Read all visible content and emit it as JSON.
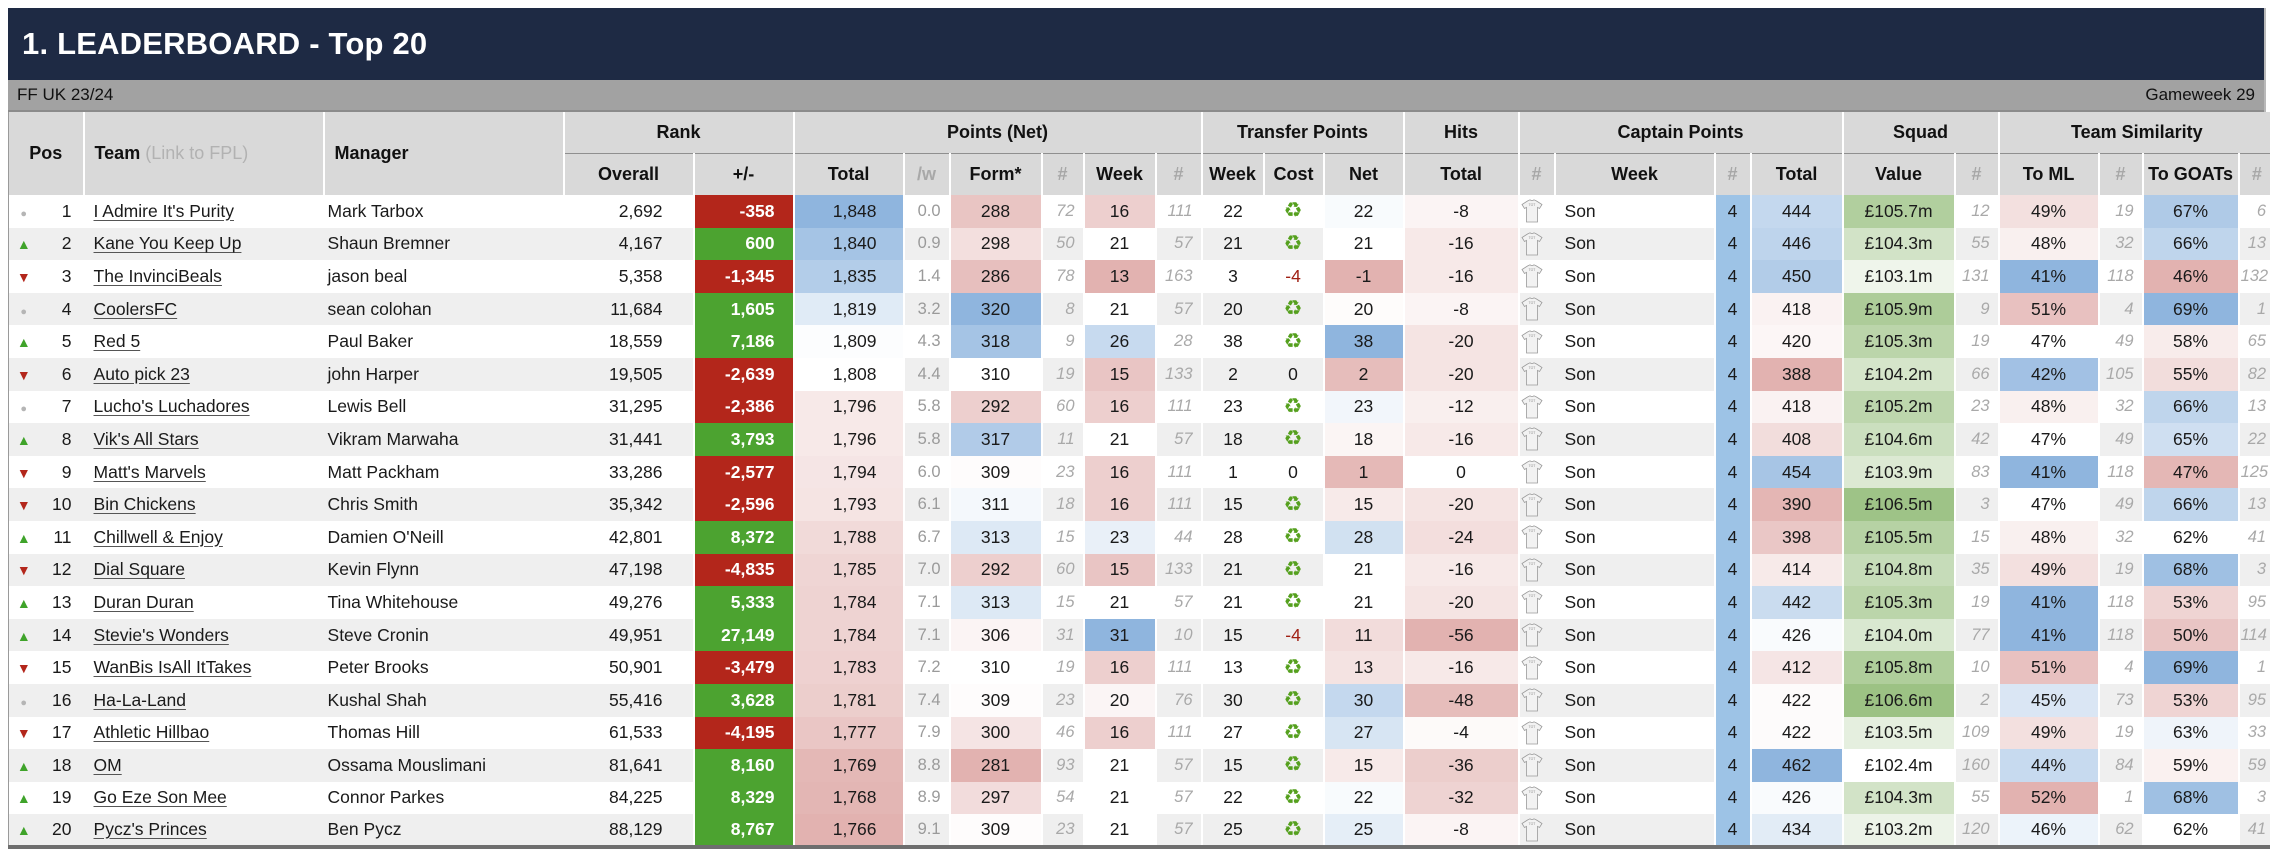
{
  "title": "1. LEADERBOARD - Top 20",
  "league": "FF UK 23/24",
  "gameweek": "Gameweek 29",
  "groups": {
    "rank": "Rank",
    "points": "Points (Net)",
    "transfers": "Transfer Points",
    "hits": "Hits",
    "captain": "Captain Points",
    "squad": "Squad",
    "similarity": "Team Similarity"
  },
  "columns": {
    "pos": "Pos",
    "team": "Team",
    "team_note": "(Link to FPL)",
    "manager": "Manager",
    "overall": "Overall",
    "plus_minus": "+/-",
    "total": "Total",
    "per_week": "/w",
    "form": "Form*",
    "hash": "#",
    "week": "Week",
    "t_week": "Week",
    "cost": "Cost",
    "net": "Net",
    "hits_total": "Total",
    "cap_week": "Week",
    "cap_total": "Total",
    "value": "Value",
    "to_ml": "To ML",
    "to_goats": "To GOATs"
  },
  "colors": {
    "navy": "#1e2a44",
    "bar_gray": "#a2a2a2",
    "header_gray": "#d9d9d9",
    "stripe": "#efefef",
    "green_pos": "#4ca330",
    "red_neg": "#b3261b",
    "blue_hi": "#8fb5de",
    "pink_lo": "#e2b2b0",
    "green_value": "#9cc284",
    "captain_col_blue": "#9dc3e6",
    "recycle_green": "#55a01e"
  },
  "rows": [
    {
      "pos": 1,
      "move": "same",
      "team": "I Admire It's Purity",
      "manager": "Mark Tarbox",
      "overall": "2,692",
      "pm": -358,
      "pm_label": "-358",
      "total": 1848,
      "total_label": "1,848",
      "pw": "0.0",
      "form": 288,
      "form_rank": 72,
      "week": 16,
      "week_rank": 111,
      "t_week": 22,
      "cost": "R",
      "net": 22,
      "hits": -8,
      "captain": "Son",
      "cap_n": 4,
      "cap_total": 444,
      "value": 105.7,
      "value_label": "£105.7m",
      "value_rank": 12,
      "to_ml": 49,
      "to_ml_rank": 19,
      "to_goats": 67,
      "to_goats_rank": 6
    },
    {
      "pos": 2,
      "move": "up",
      "team": "Kane You Keep Up",
      "manager": "Shaun Bremner",
      "overall": "4,167",
      "pm": 600,
      "pm_label": "600",
      "total": 1840,
      "total_label": "1,840",
      "pw": "0.9",
      "form": 298,
      "form_rank": 50,
      "week": 21,
      "week_rank": 57,
      "t_week": 21,
      "cost": "R",
      "net": 21,
      "hits": -16,
      "captain": "Son",
      "cap_n": 4,
      "cap_total": 446,
      "value": 104.3,
      "value_label": "£104.3m",
      "value_rank": 55,
      "to_ml": 48,
      "to_ml_rank": 32,
      "to_goats": 66,
      "to_goats_rank": 13
    },
    {
      "pos": 3,
      "move": "down",
      "team": "The InvinciBeals",
      "manager": "jason beal",
      "overall": "5,358",
      "pm": -1345,
      "pm_label": "-1,345",
      "total": 1835,
      "total_label": "1,835",
      "pw": "1.4",
      "form": 286,
      "form_rank": 78,
      "week": 13,
      "week_rank": 163,
      "t_week": 3,
      "cost": "-4",
      "net": -1,
      "hits": -16,
      "captain": "Son",
      "cap_n": 4,
      "cap_total": 450,
      "value": 103.1,
      "value_label": "£103.1m",
      "value_rank": 131,
      "to_ml": 41,
      "to_ml_rank": 118,
      "to_goats": 46,
      "to_goats_rank": 132
    },
    {
      "pos": 4,
      "move": "same",
      "team": "CoolersFC",
      "manager": "sean colohan",
      "overall": "11,684",
      "pm": 1605,
      "pm_label": "1,605",
      "total": 1819,
      "total_label": "1,819",
      "pw": "3.2",
      "form": 320,
      "form_rank": 8,
      "week": 21,
      "week_rank": 57,
      "t_week": 20,
      "cost": "R",
      "net": 20,
      "hits": -8,
      "captain": "Son",
      "cap_n": 4,
      "cap_total": 418,
      "value": 105.9,
      "value_label": "£105.9m",
      "value_rank": 9,
      "to_ml": 51,
      "to_ml_rank": 4,
      "to_goats": 69,
      "to_goats_rank": 1
    },
    {
      "pos": 5,
      "move": "up",
      "team": "Red 5",
      "manager": "Paul Baker",
      "overall": "18,559",
      "pm": 7186,
      "pm_label": "7,186",
      "total": 1809,
      "total_label": "1,809",
      "pw": "4.3",
      "form": 318,
      "form_rank": 9,
      "week": 26,
      "week_rank": 28,
      "t_week": 38,
      "cost": "R",
      "net": 38,
      "hits": -20,
      "captain": "Son",
      "cap_n": 4,
      "cap_total": 420,
      "value": 105.3,
      "value_label": "£105.3m",
      "value_rank": 19,
      "to_ml": 47,
      "to_ml_rank": 49,
      "to_goats": 58,
      "to_goats_rank": 65
    },
    {
      "pos": 6,
      "move": "down",
      "team": "Auto pick 23",
      "manager": "john Harper",
      "overall": "19,505",
      "pm": -2639,
      "pm_label": "-2,639",
      "total": 1808,
      "total_label": "1,808",
      "pw": "4.4",
      "form": 310,
      "form_rank": 19,
      "week": 15,
      "week_rank": 133,
      "t_week": 2,
      "cost": "0",
      "net": 2,
      "hits": -20,
      "captain": "Son",
      "cap_n": 4,
      "cap_total": 388,
      "value": 104.2,
      "value_label": "£104.2m",
      "value_rank": 66,
      "to_ml": 42,
      "to_ml_rank": 105,
      "to_goats": 55,
      "to_goats_rank": 82
    },
    {
      "pos": 7,
      "move": "same",
      "team": "Lucho's Luchadores",
      "manager": "Lewis Bell",
      "overall": "31,295",
      "pm": -2386,
      "pm_label": "-2,386",
      "total": 1796,
      "total_label": "1,796",
      "pw": "5.8",
      "form": 292,
      "form_rank": 60,
      "week": 16,
      "week_rank": 111,
      "t_week": 23,
      "cost": "R",
      "net": 23,
      "hits": -12,
      "captain": "Son",
      "cap_n": 4,
      "cap_total": 418,
      "value": 105.2,
      "value_label": "£105.2m",
      "value_rank": 23,
      "to_ml": 48,
      "to_ml_rank": 32,
      "to_goats": 66,
      "to_goats_rank": 13
    },
    {
      "pos": 8,
      "move": "up",
      "team": "Vik's All Stars",
      "manager": "Vikram Marwaha",
      "overall": "31,441",
      "pm": 3793,
      "pm_label": "3,793",
      "total": 1796,
      "total_label": "1,796",
      "pw": "5.8",
      "form": 317,
      "form_rank": 11,
      "week": 21,
      "week_rank": 57,
      "t_week": 18,
      "cost": "R",
      "net": 18,
      "hits": -16,
      "captain": "Son",
      "cap_n": 4,
      "cap_total": 408,
      "value": 104.6,
      "value_label": "£104.6m",
      "value_rank": 42,
      "to_ml": 47,
      "to_ml_rank": 49,
      "to_goats": 65,
      "to_goats_rank": 22
    },
    {
      "pos": 9,
      "move": "down",
      "team": "Matt's Marvels",
      "manager": "Matt Packham",
      "overall": "33,286",
      "pm": -2577,
      "pm_label": "-2,577",
      "total": 1794,
      "total_label": "1,794",
      "pw": "6.0",
      "form": 309,
      "form_rank": 23,
      "week": 16,
      "week_rank": 111,
      "t_week": 1,
      "cost": "0",
      "net": 1,
      "hits": 0,
      "captain": "Son",
      "cap_n": 4,
      "cap_total": 454,
      "value": 103.9,
      "value_label": "£103.9m",
      "value_rank": 83,
      "to_ml": 41,
      "to_ml_rank": 118,
      "to_goats": 47,
      "to_goats_rank": 125
    },
    {
      "pos": 10,
      "move": "down",
      "team": "Bin Chickens",
      "manager": "Chris Smith",
      "overall": "35,342",
      "pm": -2596,
      "pm_label": "-2,596",
      "total": 1793,
      "total_label": "1,793",
      "pw": "6.1",
      "form": 311,
      "form_rank": 18,
      "week": 16,
      "week_rank": 111,
      "t_week": 15,
      "cost": "R",
      "net": 15,
      "hits": -20,
      "captain": "Son",
      "cap_n": 4,
      "cap_total": 390,
      "value": 106.5,
      "value_label": "£106.5m",
      "value_rank": 3,
      "to_ml": 47,
      "to_ml_rank": 49,
      "to_goats": 66,
      "to_goats_rank": 13
    },
    {
      "pos": 11,
      "move": "up",
      "team": "Chillwell & Enjoy",
      "manager": "Damien O'Neill",
      "overall": "42,801",
      "pm": 8372,
      "pm_label": "8,372",
      "total": 1788,
      "total_label": "1,788",
      "pw": "6.7",
      "form": 313,
      "form_rank": 15,
      "week": 23,
      "week_rank": 44,
      "t_week": 28,
      "cost": "R",
      "net": 28,
      "hits": -24,
      "captain": "Son",
      "cap_n": 4,
      "cap_total": 398,
      "value": 105.5,
      "value_label": "£105.5m",
      "value_rank": 15,
      "to_ml": 48,
      "to_ml_rank": 32,
      "to_goats": 62,
      "to_goats_rank": 41
    },
    {
      "pos": 12,
      "move": "down",
      "team": "Dial Square",
      "manager": "Kevin Flynn",
      "overall": "47,198",
      "pm": -4835,
      "pm_label": "-4,835",
      "total": 1785,
      "total_label": "1,785",
      "pw": "7.0",
      "form": 292,
      "form_rank": 60,
      "week": 15,
      "week_rank": 133,
      "t_week": 21,
      "cost": "R",
      "net": 21,
      "hits": -16,
      "captain": "Son",
      "cap_n": 4,
      "cap_total": 414,
      "value": 104.8,
      "value_label": "£104.8m",
      "value_rank": 35,
      "to_ml": 49,
      "to_ml_rank": 19,
      "to_goats": 68,
      "to_goats_rank": 3
    },
    {
      "pos": 13,
      "move": "up",
      "team": "Duran Duran",
      "manager": "Tina Whitehouse",
      "overall": "49,276",
      "pm": 5333,
      "pm_label": "5,333",
      "total": 1784,
      "total_label": "1,784",
      "pw": "7.1",
      "form": 313,
      "form_rank": 15,
      "week": 21,
      "week_rank": 57,
      "t_week": 21,
      "cost": "R",
      "net": 21,
      "hits": -20,
      "captain": "Son",
      "cap_n": 4,
      "cap_total": 442,
      "value": 105.3,
      "value_label": "£105.3m",
      "value_rank": 19,
      "to_ml": 41,
      "to_ml_rank": 118,
      "to_goats": 53,
      "to_goats_rank": 95
    },
    {
      "pos": 14,
      "move": "up",
      "team": "Stevie's Wonders",
      "manager": "Steve Cronin",
      "overall": "49,951",
      "pm": 27149,
      "pm_label": "27,149",
      "total": 1784,
      "total_label": "1,784",
      "pw": "7.1",
      "form": 306,
      "form_rank": 31,
      "week": 31,
      "week_rank": 10,
      "t_week": 15,
      "cost": "-4",
      "net": 11,
      "hits": -56,
      "captain": "Son",
      "cap_n": 4,
      "cap_total": 426,
      "value": 104.0,
      "value_label": "£104.0m",
      "value_rank": 77,
      "to_ml": 41,
      "to_ml_rank": 118,
      "to_goats": 50,
      "to_goats_rank": 114
    },
    {
      "pos": 15,
      "move": "down",
      "team": "WanBis IsAll ItTakes",
      "manager": "Peter Brooks",
      "overall": "50,901",
      "pm": -3479,
      "pm_label": "-3,479",
      "total": 1783,
      "total_label": "1,783",
      "pw": "7.2",
      "form": 310,
      "form_rank": 19,
      "week": 16,
      "week_rank": 111,
      "t_week": 13,
      "cost": "R",
      "net": 13,
      "hits": -16,
      "captain": "Son",
      "cap_n": 4,
      "cap_total": 412,
      "value": 105.8,
      "value_label": "£105.8m",
      "value_rank": 10,
      "to_ml": 51,
      "to_ml_rank": 4,
      "to_goats": 69,
      "to_goats_rank": 1
    },
    {
      "pos": 16,
      "move": "same",
      "team": "Ha-La-Land",
      "manager": "Kushal Shah",
      "overall": "55,416",
      "pm": 3628,
      "pm_label": "3,628",
      "total": 1781,
      "total_label": "1,781",
      "pw": "7.4",
      "form": 309,
      "form_rank": 23,
      "week": 20,
      "week_rank": 76,
      "t_week": 30,
      "cost": "R",
      "net": 30,
      "hits": -48,
      "captain": "Son",
      "cap_n": 4,
      "cap_total": 422,
      "value": 106.6,
      "value_label": "£106.6m",
      "value_rank": 2,
      "to_ml": 45,
      "to_ml_rank": 73,
      "to_goats": 53,
      "to_goats_rank": 95
    },
    {
      "pos": 17,
      "move": "down",
      "team": "Athletic Hillbao",
      "manager": "Thomas Hill",
      "overall": "61,533",
      "pm": -4195,
      "pm_label": "-4,195",
      "total": 1777,
      "total_label": "1,777",
      "pw": "7.9",
      "form": 300,
      "form_rank": 46,
      "week": 16,
      "week_rank": 111,
      "t_week": 27,
      "cost": "R",
      "net": 27,
      "hits": -4,
      "captain": "Son",
      "cap_n": 4,
      "cap_total": 422,
      "value": 103.5,
      "value_label": "£103.5m",
      "value_rank": 109,
      "to_ml": 49,
      "to_ml_rank": 19,
      "to_goats": 63,
      "to_goats_rank": 33
    },
    {
      "pos": 18,
      "move": "up",
      "team": "OM",
      "manager": "Ossama Mouslimani",
      "overall": "81,641",
      "pm": 8160,
      "pm_label": "8,160",
      "total": 1769,
      "total_label": "1,769",
      "pw": "8.8",
      "form": 281,
      "form_rank": 93,
      "week": 21,
      "week_rank": 57,
      "t_week": 15,
      "cost": "R",
      "net": 15,
      "hits": -36,
      "captain": "Son",
      "cap_n": 4,
      "cap_total": 462,
      "value": 102.4,
      "value_label": "£102.4m",
      "value_rank": 160,
      "to_ml": 44,
      "to_ml_rank": 84,
      "to_goats": 59,
      "to_goats_rank": 59
    },
    {
      "pos": 19,
      "move": "up",
      "team": "Go Eze Son Mee",
      "manager": "Connor Parkes",
      "overall": "84,225",
      "pm": 8329,
      "pm_label": "8,329",
      "total": 1768,
      "total_label": "1,768",
      "pw": "8.9",
      "form": 297,
      "form_rank": 54,
      "week": 21,
      "week_rank": 57,
      "t_week": 22,
      "cost": "R",
      "net": 22,
      "hits": -32,
      "captain": "Son",
      "cap_n": 4,
      "cap_total": 426,
      "value": 104.3,
      "value_label": "£104.3m",
      "value_rank": 55,
      "to_ml": 52,
      "to_ml_rank": 1,
      "to_goats": 68,
      "to_goats_rank": 3
    },
    {
      "pos": 20,
      "move": "up",
      "team": "Pycz's Princes",
      "manager": "Ben Pycz",
      "overall": "88,129",
      "pm": 8767,
      "pm_label": "8,767",
      "total": 1766,
      "total_label": "1,766",
      "pw": "9.1",
      "form": 309,
      "form_rank": 23,
      "week": 21,
      "week_rank": 57,
      "t_week": 25,
      "cost": "R",
      "net": 25,
      "hits": -8,
      "captain": "Son",
      "cap_n": 4,
      "cap_total": 434,
      "value": 103.2,
      "value_label": "£103.2m",
      "value_rank": 120,
      "to_ml": 46,
      "to_ml_rank": 62,
      "to_goats": 62,
      "to_goats_rank": 41
    }
  ]
}
